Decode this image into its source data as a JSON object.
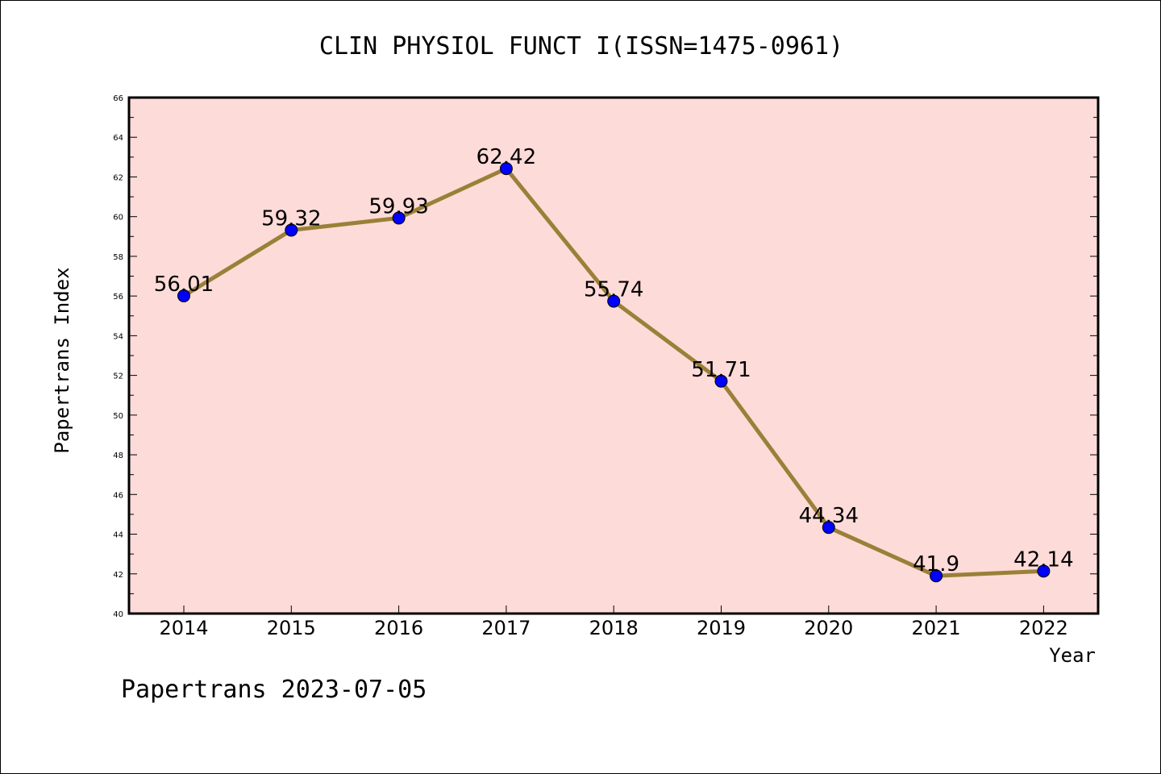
{
  "chart_data": {
    "type": "line",
    "title": "CLIN PHYSIOL FUNCT I(ISSN=1475-0961)",
    "xlabel": "Year",
    "ylabel": "Papertrans Index",
    "categories": [
      "2014",
      "2015",
      "2016",
      "2017",
      "2018",
      "2019",
      "2020",
      "2021",
      "2022"
    ],
    "values": [
      56.01,
      59.32,
      59.93,
      62.42,
      55.74,
      51.71,
      44.34,
      41.9,
      42.14
    ],
    "data_labels": [
      "56.01",
      "59.32",
      "59.93",
      "62.42",
      "55.74",
      "51.71",
      "44.34",
      "41.9",
      "42.14"
    ],
    "ylim": [
      40,
      66
    ],
    "yticks": [
      "40",
      "42",
      "44",
      "46",
      "48",
      "50",
      "52",
      "54",
      "56",
      "58",
      "60",
      "62",
      "64",
      "66"
    ],
    "grid": false,
    "colors": {
      "plot_background": "#fddbd8",
      "line": "#9a8038",
      "marker": "#0000ff"
    }
  },
  "footer": "Papertrans 2023-07-05"
}
